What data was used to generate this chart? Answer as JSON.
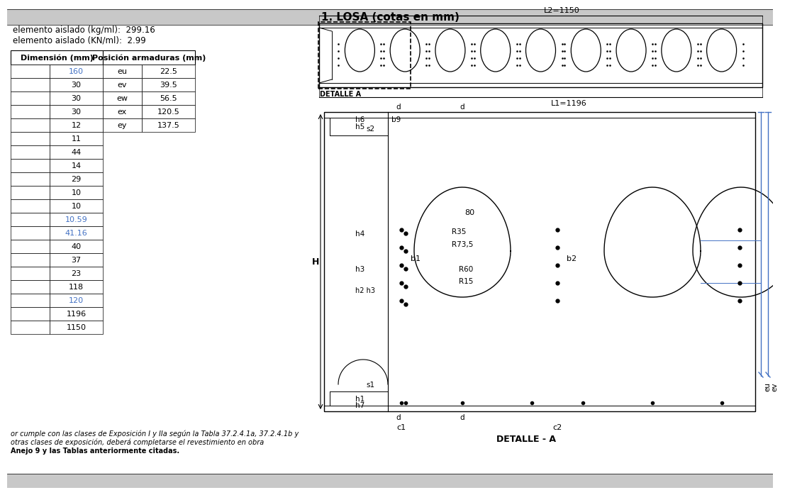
{
  "title": "1. LOSA (cotas en mm)",
  "bg_color": "#ffffff",
  "header_bg": "#c8c8c8",
  "info_line1": "elemento aislado (kg/ml):  299.16",
  "info_line2": "elemento aislado (KN/ml):  2.99",
  "dim_values": [
    "160",
    "30",
    "30",
    "30",
    "12",
    "11",
    "44",
    "14",
    "29",
    "10",
    "10",
    "10.59",
    "41.16",
    "40",
    "37",
    "23",
    "118",
    "120",
    "1196",
    "1150"
  ],
  "pos_labels": [
    "eu",
    "ev",
    "ew",
    "ex",
    "ey"
  ],
  "pos_values": [
    "22.5",
    "39.5",
    "56.5",
    "120.5",
    "137.5"
  ],
  "note_line1": "or cumple con las clases de Exposición I y IIa según la Tabla 37.2.4.1a, 37.2.4.1b y",
  "note_line2": "otras clases de exposición, deberá completarse el revestimiento en obra",
  "note_line3": "Anejo 9 y las Tablas anteriormente citadas.",
  "L1_label": "L1=1196",
  "L2_label": "L2=1150",
  "detalle_label": "DETALLE A",
  "detalle_bottom": "DETALLE - A",
  "blue_color": "#4472c4"
}
